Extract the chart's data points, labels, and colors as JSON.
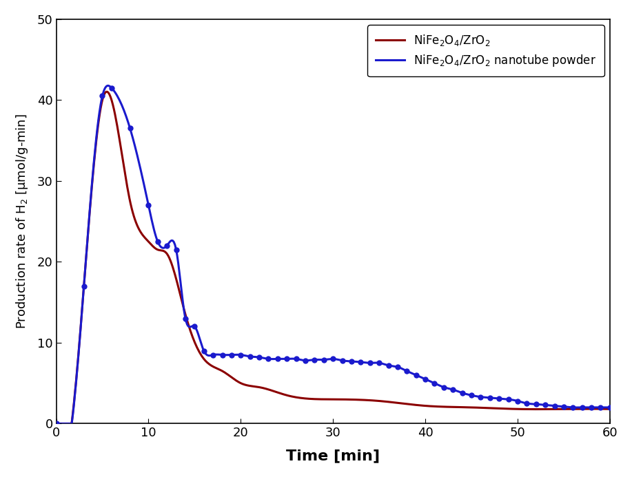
{
  "blue_x": [
    0,
    3,
    5,
    6,
    8,
    10,
    11,
    12,
    13,
    14,
    15,
    16,
    17,
    18,
    19,
    20,
    21,
    22,
    23,
    24,
    25,
    26,
    27,
    28,
    29,
    30,
    31,
    32,
    33,
    34,
    35,
    36,
    37,
    38,
    39,
    40,
    41,
    42,
    43,
    44,
    45,
    46,
    47,
    48,
    49,
    50,
    51,
    52,
    53,
    54,
    55,
    56,
    57,
    58,
    59,
    60
  ],
  "blue_y": [
    0,
    17,
    40.5,
    41.5,
    36.5,
    27.0,
    22.5,
    22.0,
    21.5,
    13.0,
    12.0,
    9.0,
    8.5,
    8.5,
    8.5,
    8.5,
    8.3,
    8.2,
    8.0,
    8.0,
    8.0,
    8.0,
    7.8,
    7.9,
    7.9,
    8.0,
    7.8,
    7.7,
    7.6,
    7.5,
    7.5,
    7.2,
    7.0,
    6.5,
    6.0,
    5.5,
    5.0,
    4.5,
    4.2,
    3.8,
    3.5,
    3.3,
    3.2,
    3.1,
    3.0,
    2.8,
    2.5,
    2.4,
    2.3,
    2.2,
    2.1,
    2.0,
    2.0,
    2.0,
    2.0,
    2.0
  ],
  "red_x": [
    0,
    3,
    5,
    6,
    8,
    10,
    11,
    12,
    14,
    16,
    18,
    20,
    22,
    25,
    30,
    35,
    40,
    45,
    50,
    55,
    60
  ],
  "red_y": [
    0,
    17,
    40.0,
    40.0,
    27.5,
    22.5,
    21.5,
    21.0,
    13.5,
    8.0,
    6.5,
    5.0,
    4.5,
    3.5,
    3.0,
    2.8,
    2.2,
    2.0,
    1.8,
    1.8,
    1.8
  ],
  "blue_color": "#1a1acd",
  "red_color": "#8b0000",
  "xlabel": "Time [min]",
  "ylabel": "Production rate of H$_2$ [μmol/g-min]",
  "xlim": [
    0,
    60
  ],
  "ylim": [
    0,
    50
  ],
  "xticks": [
    0,
    10,
    20,
    30,
    40,
    50,
    60
  ],
  "yticks": [
    0,
    10,
    20,
    30,
    40,
    50
  ],
  "legend_blue": "NiFe$_2$O$_4$/ZrO$_2$ nanotube powder",
  "legend_red": "NiFe$_2$O$_4$/ZrO$_2$",
  "xlabel_fontsize": 16,
  "ylabel_fontsize": 13,
  "tick_fontsize": 13,
  "legend_fontsize": 12
}
